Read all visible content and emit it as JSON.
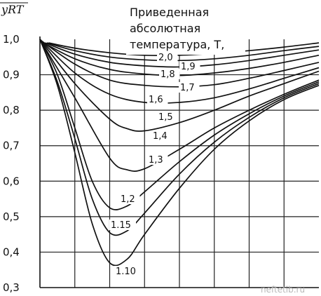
{
  "chart_data": {
    "type": "line",
    "ylabel": "yRT",
    "legend_title_lines": [
      "Приведенная",
      "абсолютная",
      "температура, T,"
    ],
    "x_range": [
      0,
      8
    ],
    "y_range": [
      0.3,
      1.0
    ],
    "y_ticks": [
      "1,0",
      "0,9",
      "0,8",
      "0,7",
      "0,6",
      "0,5",
      "0,4",
      "0,3"
    ],
    "grid": true,
    "series": [
      {
        "name": "2,0",
        "x": [
          0.25,
          1,
          2,
          3,
          4,
          5,
          6,
          7,
          8
        ],
        "y": [
          0.99,
          0.975,
          0.962,
          0.955,
          0.955,
          0.96,
          0.968,
          0.978,
          0.99
        ]
      },
      {
        "name": "1,9",
        "x": [
          0.2,
          1,
          2,
          3,
          4,
          5,
          6,
          7,
          8
        ],
        "y": [
          0.99,
          0.968,
          0.95,
          0.942,
          0.94,
          0.945,
          0.955,
          0.968,
          0.98
        ]
      },
      {
        "name": "1,8",
        "x": [
          0.15,
          1,
          2,
          3,
          4,
          5,
          6,
          7,
          8
        ],
        "y": [
          0.99,
          0.958,
          0.935,
          0.925,
          0.922,
          0.928,
          0.94,
          0.955,
          0.97
        ]
      },
      {
        "name": "1,7",
        "x": [
          0.1,
          1,
          2,
          3,
          4,
          5,
          6,
          7,
          8
        ],
        "y": [
          0.99,
          0.945,
          0.915,
          0.902,
          0.898,
          0.905,
          0.918,
          0.935,
          0.955
        ]
      },
      {
        "name": "1,6",
        "x": [
          0.05,
          1,
          2,
          3,
          4,
          5,
          6,
          7,
          8
        ],
        "y": [
          0.995,
          0.93,
          0.885,
          0.87,
          0.866,
          0.872,
          0.89,
          0.912,
          0.935
        ]
      },
      {
        "name": "1,5",
        "x": [
          0,
          1,
          2,
          3,
          4,
          5,
          6,
          7,
          8
        ],
        "y": [
          1.0,
          0.905,
          0.845,
          0.822,
          0.822,
          0.835,
          0.86,
          0.89,
          0.92
        ]
      },
      {
        "name": "1,4",
        "x": [
          0,
          1,
          2,
          2.5,
          3,
          4,
          5,
          6,
          7,
          8
        ],
        "y": [
          1.0,
          0.875,
          0.775,
          0.748,
          0.742,
          0.765,
          0.8,
          0.84,
          0.875,
          0.91
        ]
      },
      {
        "name": "1,3",
        "x": [
          0,
          1,
          2,
          2.5,
          3,
          4,
          5,
          6,
          7,
          8
        ],
        "y": [
          1.0,
          0.835,
          0.665,
          0.632,
          0.635,
          0.69,
          0.75,
          0.8,
          0.845,
          0.885
        ]
      },
      {
        "name": "1,2",
        "x": [
          0,
          0.5,
          1,
          1.5,
          2,
          2.5,
          3,
          4,
          5,
          6,
          7,
          8
        ],
        "y": [
          1.0,
          0.9,
          0.75,
          0.6,
          0.525,
          0.53,
          0.57,
          0.655,
          0.73,
          0.79,
          0.84,
          0.88
        ]
      },
      {
        "name": "1,15",
        "x": [
          0,
          0.5,
          1,
          1.5,
          2,
          2.5,
          3,
          4,
          5,
          6,
          7,
          8
        ],
        "y": [
          1.0,
          0.88,
          0.72,
          0.55,
          0.455,
          0.46,
          0.51,
          0.62,
          0.71,
          0.78,
          0.835,
          0.875
        ]
      },
      {
        "name": "1,10",
        "x": [
          0,
          0.5,
          1,
          1.5,
          2,
          2.5,
          3,
          4,
          5,
          6,
          7,
          8
        ],
        "y": [
          1.0,
          0.87,
          0.68,
          0.48,
          0.37,
          0.38,
          0.45,
          0.58,
          0.69,
          0.77,
          0.83,
          0.87
        ]
      }
    ],
    "curve_labels": [
      "2,0",
      "1,9",
      "1,8",
      "1,7",
      "1,6",
      "1,5",
      "1,4",
      "1,3",
      "1,2",
      "1.15",
      "1.10"
    ]
  },
  "watermark": "neftetib.ru"
}
